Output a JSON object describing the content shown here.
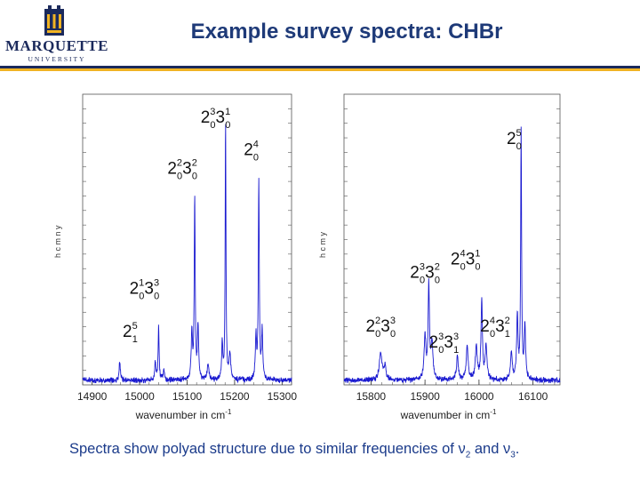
{
  "header": {
    "title": "Example survey spectra: CHBr",
    "logo_name": "MARQUETTE",
    "logo_sub": "UNIVERSITY"
  },
  "colors": {
    "accent_blue": "#1b2a5c",
    "accent_gold": "#f0b323",
    "trace": "#1a1ad0",
    "title": "#1e3a78"
  },
  "chart_data": [
    {
      "type": "line",
      "xlabel": "wavenumber in cm-1",
      "xlim": [
        14880,
        15320
      ],
      "ylim": [
        0,
        1
      ],
      "xticks": [
        14900,
        15000,
        15100,
        15200,
        15300
      ],
      "ylabel_fragment": "h c m n y",
      "peaks": [
        {
          "x": 14958,
          "h": 0.07,
          "w": 1.5
        },
        {
          "x": 15033,
          "h": 0.07,
          "w": 1.5
        },
        {
          "x": 15040,
          "h": 0.2,
          "w": 1.2
        },
        {
          "x": 15051,
          "h": 0.04,
          "w": 1.5
        },
        {
          "x": 15110,
          "h": 0.18,
          "w": 1.5
        },
        {
          "x": 15116,
          "h": 0.68,
          "w": 1.2
        },
        {
          "x": 15123,
          "h": 0.2,
          "w": 1.5
        },
        {
          "x": 15144,
          "h": 0.06,
          "w": 2
        },
        {
          "x": 15174,
          "h": 0.13,
          "w": 1.5
        },
        {
          "x": 15181,
          "h": 0.96,
          "w": 1.0
        },
        {
          "x": 15190,
          "h": 0.1,
          "w": 2
        },
        {
          "x": 15245,
          "h": 0.16,
          "w": 1.5
        },
        {
          "x": 15251,
          "h": 0.75,
          "w": 1.2
        },
        {
          "x": 15258,
          "h": 0.18,
          "w": 1.5
        }
      ],
      "labels": [
        {
          "base": "2",
          "up": "3",
          "low": "0",
          "base2": "3",
          "up2": "1",
          "low2": "0",
          "x": 15160,
          "y": 0.98
        },
        {
          "base": "2",
          "up": "4",
          "low": "0",
          "x": 15235,
          "y": 0.86
        },
        {
          "base": "2",
          "up": "2",
          "low": "0",
          "base2": "3",
          "up2": "2",
          "low2": "0",
          "x": 15090,
          "y": 0.79
        },
        {
          "base": "2",
          "up": "1",
          "low": "0",
          "base2": "3",
          "up2": "3",
          "low2": "0",
          "x": 15010,
          "y": 0.34
        },
        {
          "base": "2",
          "up": "5",
          "low": "1",
          "x": 14980,
          "y": 0.18
        }
      ]
    },
    {
      "type": "line",
      "xlabel": "wavenumber in cm-1",
      "xlim": [
        15750,
        16150
      ],
      "ylim": [
        0,
        1
      ],
      "xticks": [
        15800,
        15900,
        16000,
        16100
      ],
      "ylabel_fragment": "h c m y",
      "peaks": [
        {
          "x": 15818,
          "h": 0.1,
          "w": 3
        },
        {
          "x": 15826,
          "h": 0.05,
          "w": 2
        },
        {
          "x": 15900,
          "h": 0.16,
          "w": 2
        },
        {
          "x": 15907,
          "h": 0.35,
          "w": 1.5
        },
        {
          "x": 15913,
          "h": 0.14,
          "w": 2
        },
        {
          "x": 15960,
          "h": 0.09,
          "w": 2
        },
        {
          "x": 15978,
          "h": 0.13,
          "w": 2
        },
        {
          "x": 15995,
          "h": 0.13,
          "w": 2
        },
        {
          "x": 16005,
          "h": 0.3,
          "w": 1.5
        },
        {
          "x": 16013,
          "h": 0.12,
          "w": 2
        },
        {
          "x": 16060,
          "h": 0.1,
          "w": 2
        },
        {
          "x": 16071,
          "h": 0.24,
          "w": 1.5
        },
        {
          "x": 16078,
          "h": 0.93,
          "w": 1.0
        },
        {
          "x": 16085,
          "h": 0.2,
          "w": 1.5
        }
      ],
      "labels": [
        {
          "base": "2",
          "up": "5",
          "low": "0",
          "x": 16065,
          "y": 0.9
        },
        {
          "base": "2",
          "up": "4",
          "low": "0",
          "base2": "3",
          "up2": "1",
          "low2": "0",
          "x": 15975,
          "y": 0.45
        },
        {
          "base": "2",
          "up": "3",
          "low": "0",
          "base2": "3",
          "up2": "2",
          "low2": "0",
          "x": 15900,
          "y": 0.4
        },
        {
          "base": "2",
          "up": "2",
          "low": "0",
          "base2": "3",
          "up2": "3",
          "low2": "0",
          "x": 15818,
          "y": 0.2
        },
        {
          "base": "2",
          "up": "4",
          "low": "0",
          "base2": "3",
          "up2": "2",
          "low2": "1",
          "x": 16030,
          "y": 0.2
        },
        {
          "base": "2",
          "up": "3",
          "low": "0",
          "base2": "3",
          "up2": "3",
          "low2": "1",
          "x": 15935,
          "y": 0.14
        }
      ]
    }
  ],
  "caption": {
    "text": "Spectra show polyad structure due to similar frequencies of ",
    "nu": "ν",
    "sub1": "2",
    "and": " and ",
    "sub2": "3",
    "end": "."
  }
}
